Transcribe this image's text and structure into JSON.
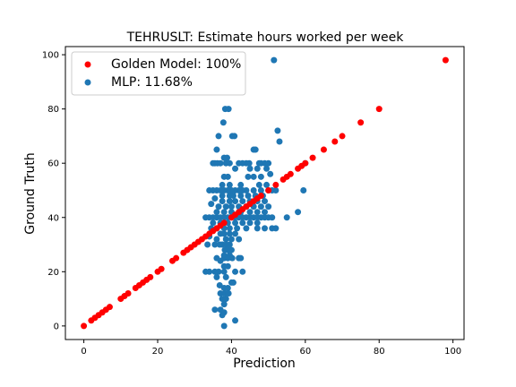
{
  "chart_data": {
    "type": "scatter",
    "title": "TEHRUSLT: Estimate hours worked per week",
    "xlabel": "Prediction",
    "ylabel": "Ground Truth",
    "xlim": [
      -5,
      103
    ],
    "ylim": [
      -5,
      103
    ],
    "xticks": [
      "0",
      "20",
      "40",
      "60",
      "80",
      "100"
    ],
    "yticks": [
      "0",
      "20",
      "40",
      "60",
      "80",
      "100"
    ],
    "grid": false,
    "legend_position": "top-left",
    "series": [
      {
        "name": "Golden Model: 100%",
        "color": "#ff0000",
        "points": [
          [
            0,
            0
          ],
          [
            2,
            2
          ],
          [
            3,
            3
          ],
          [
            4,
            4
          ],
          [
            5,
            5
          ],
          [
            6,
            6
          ],
          [
            7,
            7
          ],
          [
            10,
            10
          ],
          [
            11,
            11
          ],
          [
            12,
            12
          ],
          [
            14,
            14
          ],
          [
            15,
            15
          ],
          [
            16,
            16
          ],
          [
            17,
            17
          ],
          [
            18,
            18
          ],
          [
            20,
            20
          ],
          [
            21,
            21
          ],
          [
            24,
            24
          ],
          [
            25,
            25
          ],
          [
            27,
            27
          ],
          [
            28,
            28
          ],
          [
            29,
            29
          ],
          [
            30,
            30
          ],
          [
            31,
            31
          ],
          [
            32,
            32
          ],
          [
            33,
            33
          ],
          [
            34,
            34
          ],
          [
            35,
            35
          ],
          [
            36,
            36
          ],
          [
            37,
            37
          ],
          [
            38,
            38
          ],
          [
            40,
            40
          ],
          [
            41,
            41
          ],
          [
            42,
            42
          ],
          [
            43,
            43
          ],
          [
            44,
            44
          ],
          [
            45,
            45
          ],
          [
            46,
            46
          ],
          [
            47,
            47
          ],
          [
            48,
            48
          ],
          [
            50,
            50
          ],
          [
            52,
            52
          ],
          [
            54,
            54
          ],
          [
            55,
            55
          ],
          [
            56,
            56
          ],
          [
            58,
            58
          ],
          [
            59,
            59
          ],
          [
            60,
            60
          ],
          [
            62,
            62
          ],
          [
            65,
            65
          ],
          [
            68,
            68
          ],
          [
            70,
            70
          ],
          [
            75,
            75
          ],
          [
            80,
            80
          ],
          [
            98,
            98
          ]
        ]
      },
      {
        "name": "MLP: 11.68%",
        "color": "#1f77b4",
        "points": [
          [
            51.5,
            98
          ],
          [
            52.5,
            72
          ],
          [
            53,
            68
          ],
          [
            60,
            60
          ],
          [
            59.5,
            50
          ],
          [
            58,
            42
          ],
          [
            55,
            40
          ],
          [
            51,
            36
          ],
          [
            38.3,
            80
          ],
          [
            39.2,
            80
          ],
          [
            37.8,
            75
          ],
          [
            40.2,
            70
          ],
          [
            40.8,
            70
          ],
          [
            36.5,
            70
          ],
          [
            36,
            65
          ],
          [
            38,
            62
          ],
          [
            38.8,
            62
          ],
          [
            46,
            65
          ],
          [
            46.5,
            65
          ],
          [
            47.5,
            60
          ],
          [
            48,
            60
          ],
          [
            49,
            60
          ],
          [
            50,
            60
          ],
          [
            44,
            60
          ],
          [
            44.8,
            60
          ],
          [
            42,
            60
          ],
          [
            43,
            60
          ],
          [
            35,
            60
          ],
          [
            35.5,
            60
          ],
          [
            36.2,
            60
          ],
          [
            37,
            60
          ],
          [
            38.5,
            60
          ],
          [
            39.5,
            60
          ],
          [
            41,
            58
          ],
          [
            45,
            58
          ],
          [
            47,
            58
          ],
          [
            49.5,
            58
          ],
          [
            50.5,
            56
          ],
          [
            46,
            55
          ],
          [
            48,
            55
          ],
          [
            38,
            55
          ],
          [
            39,
            55
          ],
          [
            44.5,
            55
          ],
          [
            37.5,
            52
          ],
          [
            39.5,
            52
          ],
          [
            42.5,
            52
          ],
          [
            47.5,
            52
          ],
          [
            49.5,
            52
          ],
          [
            51,
            50
          ],
          [
            52,
            50
          ],
          [
            50,
            50
          ],
          [
            48,
            50
          ],
          [
            46,
            50
          ],
          [
            44,
            50
          ],
          [
            43,
            50
          ],
          [
            42,
            50
          ],
          [
            41,
            50
          ],
          [
            40,
            50
          ],
          [
            39,
            50
          ],
          [
            38,
            50
          ],
          [
            37,
            50
          ],
          [
            36,
            50
          ],
          [
            35,
            50
          ],
          [
            34,
            50
          ],
          [
            37.5,
            48
          ],
          [
            39.5,
            48
          ],
          [
            40.5,
            48
          ],
          [
            42.5,
            48
          ],
          [
            44.5,
            48
          ],
          [
            46.5,
            48
          ],
          [
            48.5,
            48
          ],
          [
            35.5,
            47
          ],
          [
            37.5,
            46
          ],
          [
            39.5,
            46
          ],
          [
            41,
            46
          ],
          [
            43,
            46
          ],
          [
            45,
            46
          ],
          [
            47,
            46
          ],
          [
            49,
            46
          ],
          [
            34.5,
            45
          ],
          [
            36.5,
            44
          ],
          [
            38.5,
            44
          ],
          [
            40,
            44
          ],
          [
            42,
            44
          ],
          [
            44,
            44
          ],
          [
            46,
            44
          ],
          [
            48,
            44
          ],
          [
            50,
            44
          ],
          [
            36,
            42
          ],
          [
            38,
            42
          ],
          [
            40,
            42
          ],
          [
            42.5,
            42
          ],
          [
            45,
            42
          ],
          [
            47,
            42
          ],
          [
            49,
            42
          ],
          [
            33,
            40
          ],
          [
            34,
            40
          ],
          [
            35,
            40
          ],
          [
            36,
            40
          ],
          [
            37,
            40
          ],
          [
            38,
            40
          ],
          [
            39,
            40
          ],
          [
            40,
            40
          ],
          [
            41,
            40
          ],
          [
            42,
            40
          ],
          [
            43,
            40
          ],
          [
            44,
            40
          ],
          [
            45,
            40
          ],
          [
            46,
            40
          ],
          [
            47,
            40
          ],
          [
            48,
            40
          ],
          [
            49,
            40
          ],
          [
            50,
            40
          ],
          [
            51,
            40
          ],
          [
            35,
            38
          ],
          [
            37,
            38
          ],
          [
            39,
            38
          ],
          [
            41,
            38
          ],
          [
            43,
            38
          ],
          [
            45,
            38
          ],
          [
            47,
            38
          ],
          [
            34.5,
            36
          ],
          [
            36,
            36
          ],
          [
            38,
            36
          ],
          [
            39.5,
            36
          ],
          [
            41.5,
            36
          ],
          [
            44,
            36
          ],
          [
            47,
            36
          ],
          [
            49,
            36
          ],
          [
            52,
            36
          ],
          [
            37,
            34
          ],
          [
            38,
            34
          ],
          [
            39.5,
            34
          ],
          [
            41,
            34
          ],
          [
            34,
            33
          ],
          [
            36,
            32
          ],
          [
            38.5,
            32
          ],
          [
            40,
            32
          ],
          [
            42,
            32
          ],
          [
            35.5,
            30
          ],
          [
            36.8,
            30
          ],
          [
            37.5,
            30
          ],
          [
            38.5,
            30
          ],
          [
            39.5,
            30
          ],
          [
            33.5,
            30
          ],
          [
            38.2,
            28
          ],
          [
            39,
            28
          ],
          [
            40,
            28
          ],
          [
            38,
            26
          ],
          [
            39.5,
            26
          ],
          [
            36,
            25
          ],
          [
            38,
            25
          ],
          [
            39,
            25
          ],
          [
            40.2,
            25
          ],
          [
            42,
            25
          ],
          [
            42.5,
            25
          ],
          [
            37,
            24
          ],
          [
            38,
            22
          ],
          [
            39,
            22
          ],
          [
            36.5,
            20
          ],
          [
            38,
            20
          ],
          [
            41,
            20
          ],
          [
            43,
            20
          ],
          [
            33,
            20
          ],
          [
            34,
            20
          ],
          [
            35.5,
            20
          ],
          [
            36,
            18
          ],
          [
            38.5,
            18
          ],
          [
            40,
            16
          ],
          [
            40.5,
            16
          ],
          [
            36.8,
            15
          ],
          [
            38,
            14
          ],
          [
            39,
            14
          ],
          [
            37,
            12
          ],
          [
            38.2,
            12
          ],
          [
            39.2,
            12
          ],
          [
            37.5,
            10
          ],
          [
            38.5,
            10
          ],
          [
            38,
            8
          ],
          [
            37,
            6
          ],
          [
            38,
            5
          ],
          [
            37.5,
            4
          ],
          [
            38,
            0
          ],
          [
            41,
            2
          ],
          [
            35.5,
            6
          ]
        ]
      }
    ]
  }
}
